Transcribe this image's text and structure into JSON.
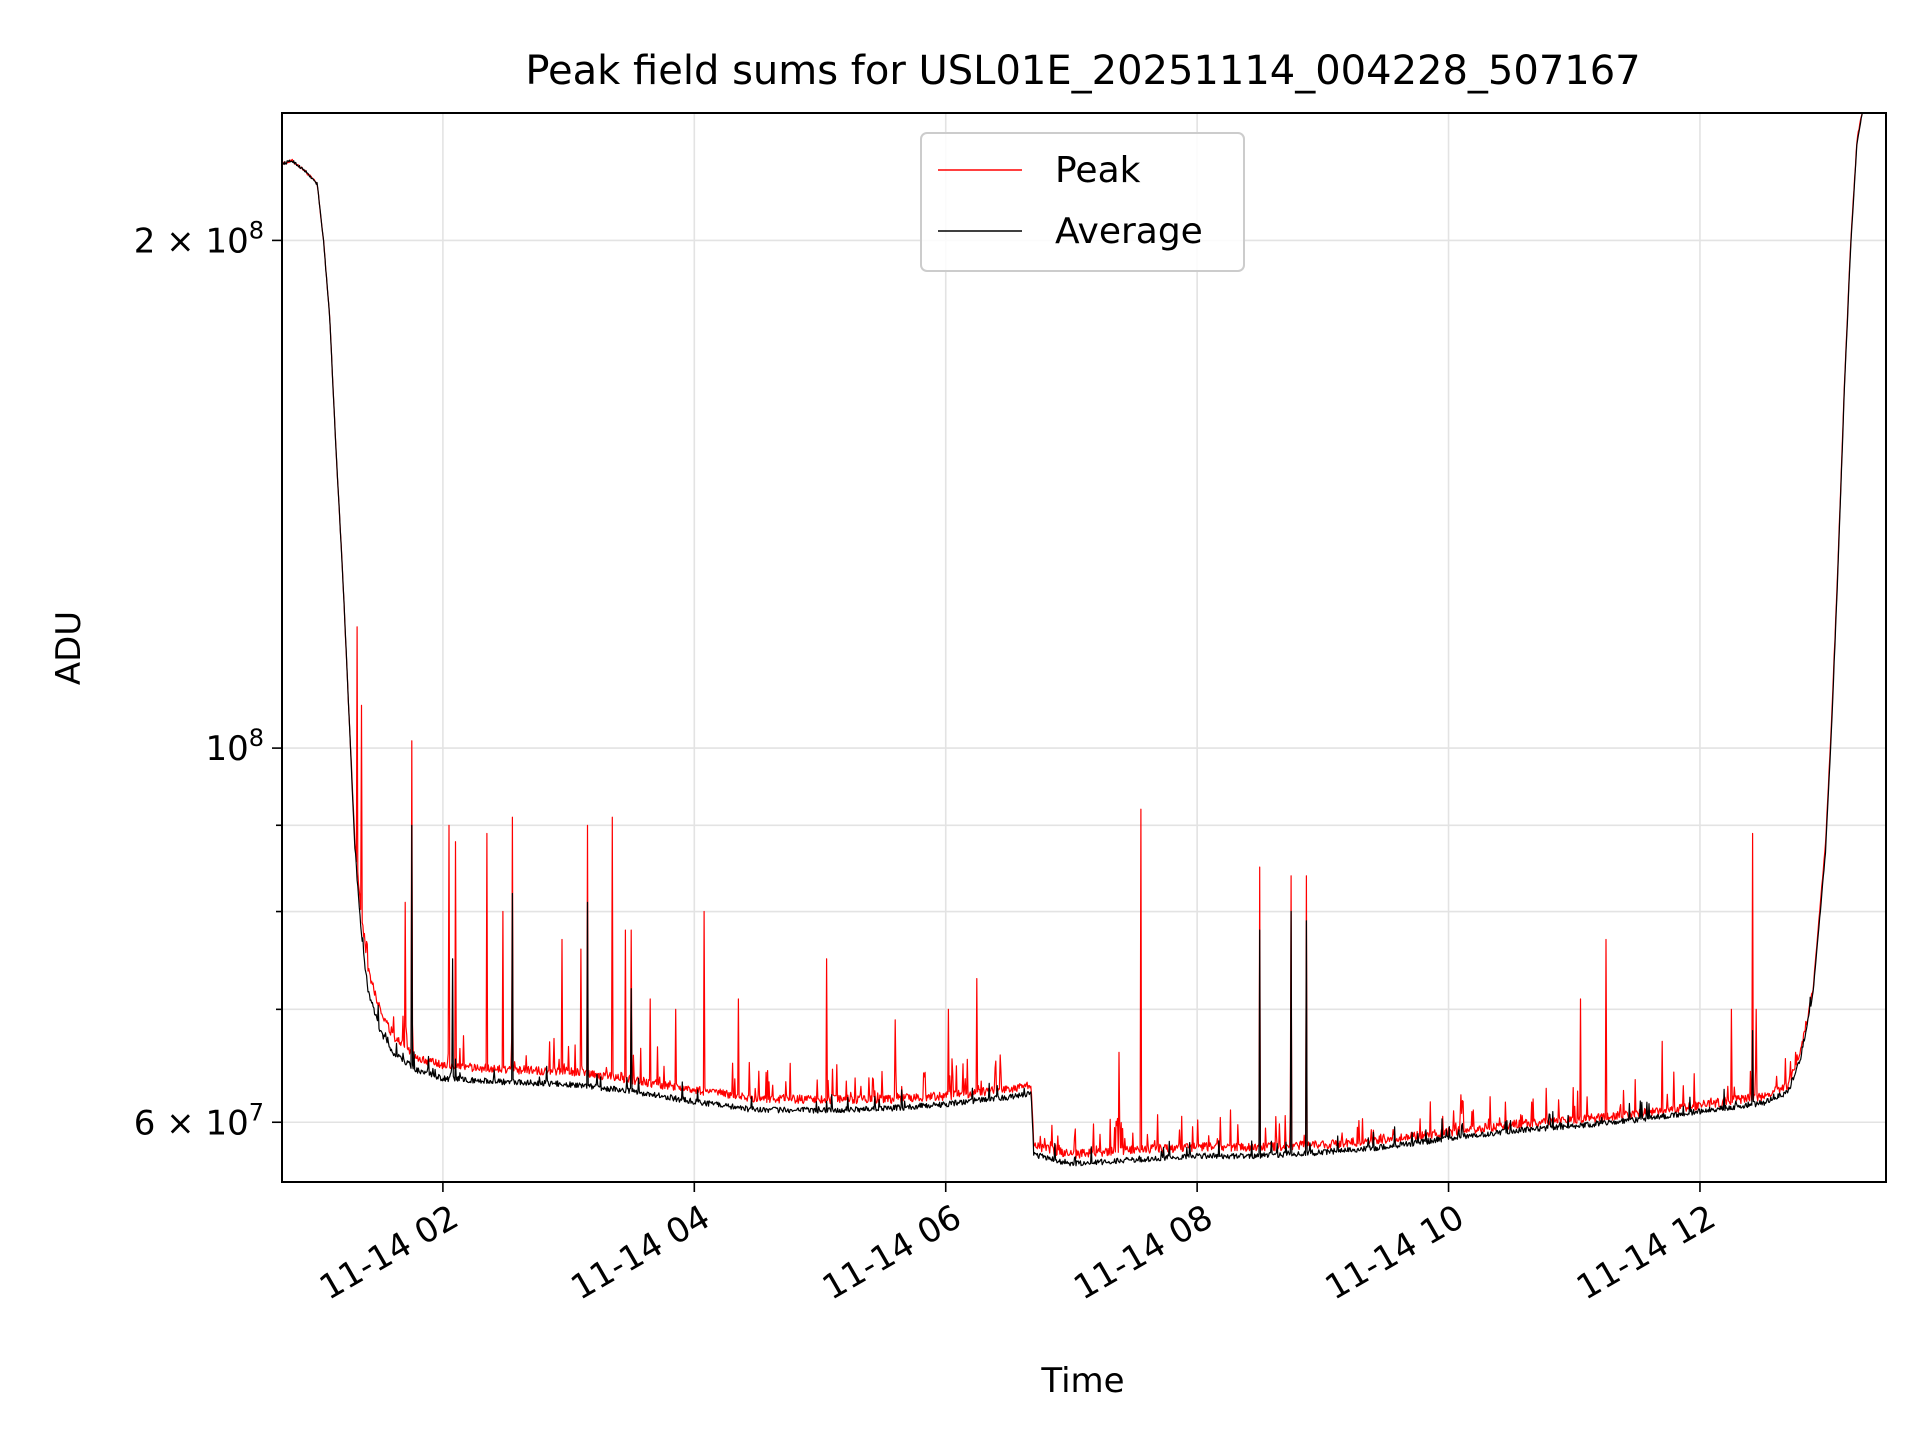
{
  "chart_data": {
    "type": "line",
    "title": "Peak field sums for USL01E_20251114_004228_507167",
    "xlabel": "Time",
    "ylabel": "ADU",
    "yscale": "log",
    "grid": true,
    "legend_position": "upper center",
    "x_range_hours": [
      0.72,
      13.48
    ],
    "y_range": [
      55300000,
      238000000
    ],
    "x_ticks": [
      {
        "hour": 2,
        "label": "11-14 02"
      },
      {
        "hour": 4,
        "label": "11-14 04"
      },
      {
        "hour": 6,
        "label": "11-14 06"
      },
      {
        "hour": 8,
        "label": "11-14 08"
      },
      {
        "hour": 10,
        "label": "11-14 10"
      },
      {
        "hour": 12,
        "label": "11-14 12"
      }
    ],
    "y_major_ticks": [
      {
        "value": 200000000,
        "base": "2 × 10",
        "exp": "8"
      },
      {
        "value": 100000000,
        "base": "10",
        "exp": "8"
      },
      {
        "value": 60000000,
        "base": "6 × 10",
        "exp": "7"
      }
    ],
    "y_minor_ticks": [
      70000000,
      80000000,
      90000000
    ],
    "series": [
      {
        "name": "Peak",
        "color": "#ff0000",
        "baseline": [
          [
            0.72,
            222000000
          ],
          [
            0.8,
            223000000
          ],
          [
            0.9,
            220000000
          ],
          [
            0.95,
            218000000
          ],
          [
            1.0,
            216000000
          ],
          [
            1.05,
            200000000
          ],
          [
            1.1,
            180000000
          ],
          [
            1.15,
            150000000
          ],
          [
            1.2,
            128000000
          ],
          [
            1.25,
            106000000
          ],
          [
            1.3,
            88000000
          ],
          [
            1.35,
            80000000
          ],
          [
            1.4,
            74000000
          ],
          [
            1.5,
            70000000
          ],
          [
            1.6,
            67500000
          ],
          [
            1.8,
            65500000
          ],
          [
            2.0,
            64800000
          ],
          [
            2.5,
            64500000
          ],
          [
            3.0,
            64300000
          ],
          [
            3.5,
            63600000
          ],
          [
            4.0,
            62700000
          ],
          [
            4.5,
            62000000
          ],
          [
            5.0,
            61900000
          ],
          [
            5.5,
            61900000
          ],
          [
            6.0,
            62200000
          ],
          [
            6.5,
            62800000
          ],
          [
            6.68,
            63100000
          ],
          [
            6.7,
            58100000
          ],
          [
            7.0,
            57400000
          ],
          [
            7.5,
            57800000
          ],
          [
            8.0,
            58000000
          ],
          [
            8.5,
            58000000
          ],
          [
            9.0,
            58200000
          ],
          [
            9.5,
            58600000
          ],
          [
            10.0,
            59200000
          ],
          [
            10.5,
            59800000
          ],
          [
            11.0,
            60200000
          ],
          [
            11.5,
            60700000
          ],
          [
            12.0,
            61400000
          ],
          [
            12.5,
            62200000
          ],
          [
            12.7,
            63000000
          ],
          [
            12.8,
            66000000
          ],
          [
            12.9,
            72000000
          ],
          [
            13.0,
            88000000
          ],
          [
            13.05,
            105000000
          ],
          [
            13.1,
            130000000
          ],
          [
            13.15,
            165000000
          ],
          [
            13.2,
            200000000
          ],
          [
            13.25,
            230000000
          ],
          [
            13.3,
            240000000
          ],
          [
            13.48,
            240000000
          ]
        ],
        "spikes": [
          [
            1.32,
            118000000
          ],
          [
            1.35,
            106000000
          ],
          [
            1.7,
            81000000
          ],
          [
            1.75,
            101000000
          ],
          [
            2.05,
            90000000
          ],
          [
            2.1,
            88000000
          ],
          [
            2.35,
            89000000
          ],
          [
            2.48,
            80000000
          ],
          [
            2.55,
            91000000
          ],
          [
            2.95,
            77000000
          ],
          [
            3.1,
            76000000
          ],
          [
            3.15,
            90000000
          ],
          [
            3.35,
            91000000
          ],
          [
            3.45,
            78000000
          ],
          [
            3.5,
            78000000
          ],
          [
            3.65,
            71000000
          ],
          [
            3.85,
            70000000
          ],
          [
            4.08,
            80000000
          ],
          [
            4.35,
            71000000
          ],
          [
            5.05,
            75000000
          ],
          [
            5.6,
            69000000
          ],
          [
            6.02,
            70000000
          ],
          [
            6.25,
            73000000
          ],
          [
            7.38,
            66000000
          ],
          [
            7.55,
            92000000
          ],
          [
            8.5,
            85000000
          ],
          [
            8.75,
            84000000
          ],
          [
            8.87,
            84000000
          ],
          [
            11.05,
            71000000
          ],
          [
            11.25,
            77000000
          ],
          [
            11.7,
            67000000
          ],
          [
            12.25,
            70000000
          ],
          [
            12.42,
            89000000
          ],
          [
            12.45,
            70000000
          ]
        ]
      },
      {
        "name": "Average",
        "color": "#000000",
        "baseline": [
          [
            0.72,
            222000000
          ],
          [
            0.8,
            223000000
          ],
          [
            0.9,
            220000000
          ],
          [
            0.95,
            218000000
          ],
          [
            1.0,
            216000000
          ],
          [
            1.05,
            200000000
          ],
          [
            1.1,
            180000000
          ],
          [
            1.15,
            150000000
          ],
          [
            1.2,
            128000000
          ],
          [
            1.25,
            106000000
          ],
          [
            1.3,
            87000000
          ],
          [
            1.35,
            78000000
          ],
          [
            1.4,
            72000000
          ],
          [
            1.5,
            68000000
          ],
          [
            1.6,
            66000000
          ],
          [
            1.8,
            64400000
          ],
          [
            2.0,
            63700000
          ],
          [
            2.5,
            63400000
          ],
          [
            3.0,
            63200000
          ],
          [
            3.5,
            62600000
          ],
          [
            4.0,
            61700000
          ],
          [
            4.5,
            61000000
          ],
          [
            5.0,
            61000000
          ],
          [
            5.5,
            61100000
          ],
          [
            6.0,
            61500000
          ],
          [
            6.5,
            62100000
          ],
          [
            6.68,
            62400000
          ],
          [
            6.7,
            57400000
          ],
          [
            7.0,
            56700000
          ],
          [
            7.5,
            57000000
          ],
          [
            8.0,
            57300000
          ],
          [
            8.5,
            57300000
          ],
          [
            9.0,
            57600000
          ],
          [
            9.5,
            58000000
          ],
          [
            10.0,
            58700000
          ],
          [
            10.5,
            59300000
          ],
          [
            11.0,
            59700000
          ],
          [
            11.5,
            60200000
          ],
          [
            12.0,
            60900000
          ],
          [
            12.5,
            61600000
          ],
          [
            12.7,
            62500000
          ],
          [
            12.8,
            65500000
          ],
          [
            12.9,
            71500000
          ],
          [
            13.0,
            87000000
          ],
          [
            13.05,
            104000000
          ],
          [
            13.1,
            129000000
          ],
          [
            13.15,
            164000000
          ],
          [
            13.2,
            199000000
          ],
          [
            13.25,
            229000000
          ],
          [
            13.3,
            240000000
          ],
          [
            13.48,
            240000000
          ]
        ],
        "spikes": [
          [
            1.75,
            90000000
          ],
          [
            2.08,
            75000000
          ],
          [
            2.55,
            82000000
          ],
          [
            3.15,
            81000000
          ],
          [
            3.5,
            72000000
          ],
          [
            8.5,
            78000000
          ],
          [
            8.75,
            80000000
          ],
          [
            8.87,
            79000000
          ],
          [
            12.42,
            68000000
          ]
        ]
      }
    ]
  }
}
